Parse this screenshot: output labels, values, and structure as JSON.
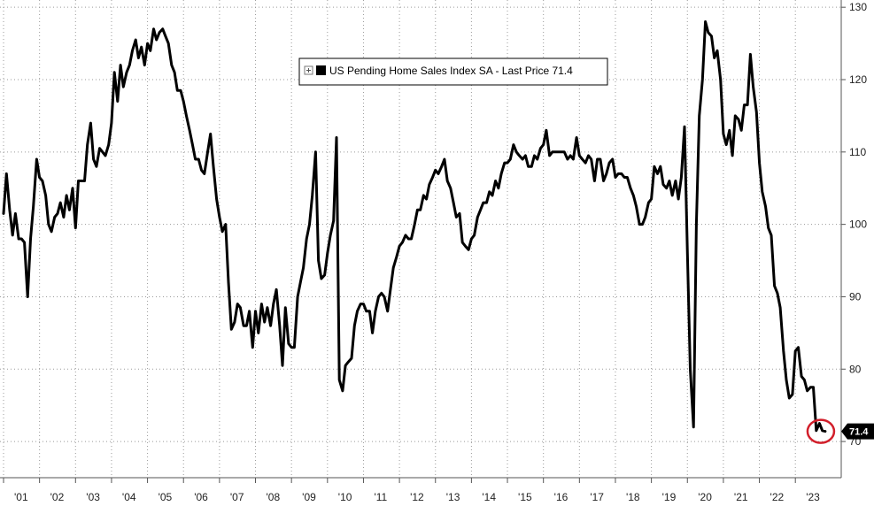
{
  "chart_data": {
    "type": "line",
    "title": "",
    "xlabel": "",
    "ylabel": "",
    "legend": {
      "placement": "top-center",
      "text": "US Pending Home Sales Index SA - Last Price 71.4",
      "box_icon": "expand-icon",
      "swatch_color": "#000000"
    },
    "ylim": [
      65,
      131
    ],
    "y_ticks": [
      "70",
      "80",
      "90",
      "100",
      "110",
      "120",
      "130"
    ],
    "y_tick_values": [
      70,
      80,
      90,
      100,
      110,
      120,
      130
    ],
    "xlim": [
      2001.0,
      2023.93
    ],
    "x_ticks": [
      "'01",
      "'02",
      "'03",
      "'04",
      "'05",
      "'06",
      "'07",
      "'08",
      "'09",
      "'10",
      "'11",
      "'12",
      "'13",
      "'14",
      "'15",
      "'16",
      "'17",
      "'18",
      "'19",
      "'20",
      "'21",
      "'22",
      "'23"
    ],
    "x_tick_values": [
      2001,
      2002,
      2003,
      2004,
      2005,
      2006,
      2007,
      2008,
      2009,
      2010,
      2011,
      2012,
      2013,
      2014,
      2015,
      2016,
      2017,
      2018,
      2019,
      2020,
      2021,
      2022,
      2023
    ],
    "grid": true,
    "last_value_label": "71.4",
    "last_value": 71.4,
    "highlight_circle_color": "#d21f2b",
    "series": [
      {
        "name": "US Pending Home Sales Index SA",
        "color": "#000000",
        "points": [
          [
            2001.0,
            101.5
          ],
          [
            2001.08,
            107.0
          ],
          [
            2001.17,
            102.0
          ],
          [
            2001.25,
            98.5
          ],
          [
            2001.33,
            101.5
          ],
          [
            2001.42,
            98.0
          ],
          [
            2001.5,
            98.0
          ],
          [
            2001.58,
            97.5
          ],
          [
            2001.67,
            90.0
          ],
          [
            2001.75,
            98.0
          ],
          [
            2001.83,
            102.5
          ],
          [
            2001.92,
            109.0
          ],
          [
            2002.0,
            106.5
          ],
          [
            2002.08,
            106.0
          ],
          [
            2002.17,
            104.0
          ],
          [
            2002.25,
            100.0
          ],
          [
            2002.33,
            99.0
          ],
          [
            2002.42,
            101.0
          ],
          [
            2002.5,
            101.5
          ],
          [
            2002.58,
            103.0
          ],
          [
            2002.67,
            101.0
          ],
          [
            2002.75,
            104.0
          ],
          [
            2002.83,
            102.0
          ],
          [
            2002.92,
            105.0
          ],
          [
            2003.0,
            99.5
          ],
          [
            2003.08,
            106.0
          ],
          [
            2003.17,
            106.0
          ],
          [
            2003.25,
            106.0
          ],
          [
            2003.33,
            111.0
          ],
          [
            2003.42,
            114.0
          ],
          [
            2003.5,
            109.0
          ],
          [
            2003.58,
            108.0
          ],
          [
            2003.67,
            110.5
          ],
          [
            2003.75,
            110.0
          ],
          [
            2003.83,
            109.5
          ],
          [
            2003.92,
            111.0
          ],
          [
            2004.0,
            114.0
          ],
          [
            2004.08,
            121.0
          ],
          [
            2004.17,
            117.0
          ],
          [
            2004.25,
            122.0
          ],
          [
            2004.33,
            119.0
          ],
          [
            2004.42,
            121.0
          ],
          [
            2004.5,
            122.0
          ],
          [
            2004.58,
            124.0
          ],
          [
            2004.67,
            125.5
          ],
          [
            2004.75,
            123.0
          ],
          [
            2004.83,
            124.5
          ],
          [
            2004.92,
            122.0
          ],
          [
            2005.0,
            125.0
          ],
          [
            2005.08,
            124.0
          ],
          [
            2005.17,
            127.0
          ],
          [
            2005.25,
            125.5
          ],
          [
            2005.33,
            126.5
          ],
          [
            2005.42,
            127.0
          ],
          [
            2005.5,
            126.0
          ],
          [
            2005.58,
            125.0
          ],
          [
            2005.67,
            122.0
          ],
          [
            2005.75,
            121.0
          ],
          [
            2005.83,
            118.5
          ],
          [
            2005.92,
            118.5
          ],
          [
            2006.0,
            117.0
          ],
          [
            2006.08,
            115.0
          ],
          [
            2006.17,
            113.0
          ],
          [
            2006.25,
            111.0
          ],
          [
            2006.33,
            109.0
          ],
          [
            2006.42,
            109.0
          ],
          [
            2006.5,
            107.5
          ],
          [
            2006.58,
            107.0
          ],
          [
            2006.67,
            110.0
          ],
          [
            2006.75,
            112.5
          ],
          [
            2006.83,
            108.0
          ],
          [
            2006.92,
            103.5
          ],
          [
            2007.0,
            101.0
          ],
          [
            2007.08,
            99.0
          ],
          [
            2007.17,
            100.0
          ],
          [
            2007.25,
            92.0
          ],
          [
            2007.33,
            85.5
          ],
          [
            2007.42,
            86.5
          ],
          [
            2007.5,
            89.0
          ],
          [
            2007.58,
            88.5
          ],
          [
            2007.67,
            86.0
          ],
          [
            2007.75,
            86.0
          ],
          [
            2007.83,
            88.0
          ],
          [
            2007.92,
            83.0
          ],
          [
            2008.0,
            88.0
          ],
          [
            2008.08,
            85.0
          ],
          [
            2008.17,
            89.0
          ],
          [
            2008.25,
            86.5
          ],
          [
            2008.33,
            88.5
          ],
          [
            2008.42,
            86.0
          ],
          [
            2008.5,
            89.0
          ],
          [
            2008.58,
            91.0
          ],
          [
            2008.67,
            86.0
          ],
          [
            2008.75,
            80.5
          ],
          [
            2008.83,
            88.5
          ],
          [
            2008.92,
            83.5
          ],
          [
            2009.0,
            83.0
          ],
          [
            2009.08,
            83.0
          ],
          [
            2009.17,
            90.0
          ],
          [
            2009.25,
            92.0
          ],
          [
            2009.33,
            94.0
          ],
          [
            2009.42,
            98.0
          ],
          [
            2009.5,
            100.0
          ],
          [
            2009.58,
            104.0
          ],
          [
            2009.67,
            110.0
          ],
          [
            2009.75,
            95.0
          ],
          [
            2009.83,
            92.5
          ],
          [
            2009.92,
            93.0
          ],
          [
            2010.0,
            96.0
          ],
          [
            2010.08,
            98.5
          ],
          [
            2010.17,
            100.5
          ],
          [
            2010.25,
            112.0
          ],
          [
            2010.33,
            78.5
          ],
          [
            2010.42,
            77.0
          ],
          [
            2010.5,
            80.5
          ],
          [
            2010.58,
            81.0
          ],
          [
            2010.67,
            81.5
          ],
          [
            2010.75,
            86.0
          ],
          [
            2010.83,
            88.0
          ],
          [
            2010.92,
            89.0
          ],
          [
            2011.0,
            89.0
          ],
          [
            2011.08,
            88.0
          ],
          [
            2011.17,
            88.0
          ],
          [
            2011.25,
            85.0
          ],
          [
            2011.33,
            88.0
          ],
          [
            2011.42,
            90.0
          ],
          [
            2011.5,
            90.5
          ],
          [
            2011.58,
            90.0
          ],
          [
            2011.67,
            88.0
          ],
          [
            2011.75,
            91.0
          ],
          [
            2011.83,
            94.0
          ],
          [
            2011.92,
            95.5
          ],
          [
            2012.0,
            97.0
          ],
          [
            2012.08,
            97.5
          ],
          [
            2012.17,
            98.5
          ],
          [
            2012.25,
            98.0
          ],
          [
            2012.33,
            98.0
          ],
          [
            2012.42,
            100.0
          ],
          [
            2012.5,
            102.0
          ],
          [
            2012.58,
            102.0
          ],
          [
            2012.67,
            104.0
          ],
          [
            2012.75,
            103.5
          ],
          [
            2012.83,
            105.5
          ],
          [
            2012.92,
            106.5
          ],
          [
            2013.0,
            107.5
          ],
          [
            2013.08,
            107.0
          ],
          [
            2013.17,
            108.0
          ],
          [
            2013.25,
            109.0
          ],
          [
            2013.33,
            106.0
          ],
          [
            2013.42,
            105.0
          ],
          [
            2013.5,
            103.0
          ],
          [
            2013.58,
            101.0
          ],
          [
            2013.67,
            101.5
          ],
          [
            2013.75,
            97.5
          ],
          [
            2013.83,
            97.0
          ],
          [
            2013.92,
            96.5
          ],
          [
            2014.0,
            98.0
          ],
          [
            2014.08,
            98.5
          ],
          [
            2014.17,
            101.0
          ],
          [
            2014.25,
            102.0
          ],
          [
            2014.33,
            103.0
          ],
          [
            2014.42,
            103.0
          ],
          [
            2014.5,
            104.5
          ],
          [
            2014.58,
            104.0
          ],
          [
            2014.67,
            106.0
          ],
          [
            2014.75,
            105.0
          ],
          [
            2014.83,
            107.0
          ],
          [
            2014.92,
            108.5
          ],
          [
            2015.0,
            108.5
          ],
          [
            2015.08,
            109.0
          ],
          [
            2015.17,
            111.0
          ],
          [
            2015.25,
            110.0
          ],
          [
            2015.33,
            109.5
          ],
          [
            2015.42,
            109.0
          ],
          [
            2015.5,
            109.5
          ],
          [
            2015.58,
            108.0
          ],
          [
            2015.67,
            108.0
          ],
          [
            2015.75,
            109.5
          ],
          [
            2015.83,
            109.0
          ],
          [
            2015.92,
            110.5
          ],
          [
            2016.0,
            111.0
          ],
          [
            2016.08,
            113.0
          ],
          [
            2016.17,
            109.5
          ],
          [
            2016.25,
            110.0
          ],
          [
            2016.33,
            110.0
          ],
          [
            2016.42,
            110.0
          ],
          [
            2016.5,
            110.0
          ],
          [
            2016.58,
            110.0
          ],
          [
            2016.67,
            109.0
          ],
          [
            2016.75,
            109.5
          ],
          [
            2016.83,
            109.0
          ],
          [
            2016.92,
            112.0
          ],
          [
            2017.0,
            109.5
          ],
          [
            2017.08,
            109.0
          ],
          [
            2017.17,
            108.5
          ],
          [
            2017.25,
            109.5
          ],
          [
            2017.33,
            109.0
          ],
          [
            2017.42,
            106.0
          ],
          [
            2017.5,
            109.0
          ],
          [
            2017.58,
            109.0
          ],
          [
            2017.67,
            106.0
          ],
          [
            2017.75,
            107.0
          ],
          [
            2017.83,
            108.5
          ],
          [
            2017.92,
            109.0
          ],
          [
            2018.0,
            106.5
          ],
          [
            2018.08,
            107.0
          ],
          [
            2018.17,
            107.0
          ],
          [
            2018.25,
            106.5
          ],
          [
            2018.33,
            106.5
          ],
          [
            2018.42,
            105.0
          ],
          [
            2018.5,
            104.0
          ],
          [
            2018.58,
            102.5
          ],
          [
            2018.67,
            100.0
          ],
          [
            2018.75,
            100.0
          ],
          [
            2018.83,
            101.0
          ],
          [
            2018.92,
            103.0
          ],
          [
            2019.0,
            103.5
          ],
          [
            2019.08,
            108.0
          ],
          [
            2019.17,
            107.0
          ],
          [
            2019.25,
            108.0
          ],
          [
            2019.33,
            105.5
          ],
          [
            2019.42,
            105.0
          ],
          [
            2019.5,
            106.0
          ],
          [
            2019.58,
            104.0
          ],
          [
            2019.67,
            106.0
          ],
          [
            2019.75,
            103.5
          ],
          [
            2019.83,
            106.5
          ],
          [
            2019.92,
            113.5
          ],
          [
            2020.0,
            96.0
          ],
          [
            2020.08,
            80.0
          ],
          [
            2020.17,
            72.0
          ],
          [
            2020.25,
            100.0
          ],
          [
            2020.33,
            115.0
          ],
          [
            2020.42,
            120.0
          ],
          [
            2020.5,
            128.0
          ],
          [
            2020.58,
            126.5
          ],
          [
            2020.67,
            126.0
          ],
          [
            2020.75,
            123.0
          ],
          [
            2020.83,
            124.0
          ],
          [
            2020.92,
            120.0
          ],
          [
            2021.0,
            112.5
          ],
          [
            2021.08,
            111.0
          ],
          [
            2021.17,
            113.0
          ],
          [
            2021.25,
            109.5
          ],
          [
            2021.33,
            115.0
          ],
          [
            2021.42,
            114.5
          ],
          [
            2021.5,
            113.0
          ],
          [
            2021.58,
            116.5
          ],
          [
            2021.67,
            116.5
          ],
          [
            2021.75,
            123.5
          ],
          [
            2021.83,
            119.0
          ],
          [
            2021.92,
            115.5
          ],
          [
            2022.0,
            108.5
          ],
          [
            2022.08,
            104.5
          ],
          [
            2022.17,
            102.5
          ],
          [
            2022.25,
            99.5
          ],
          [
            2022.33,
            98.5
          ],
          [
            2022.42,
            91.5
          ],
          [
            2022.5,
            90.5
          ],
          [
            2022.58,
            88.5
          ],
          [
            2022.67,
            82.5
          ],
          [
            2022.75,
            78.5
          ],
          [
            2022.83,
            76.0
          ],
          [
            2022.92,
            76.5
          ],
          [
            2023.0,
            82.5
          ],
          [
            2023.08,
            83.0
          ],
          [
            2023.17,
            79.0
          ],
          [
            2023.25,
            78.5
          ],
          [
            2023.33,
            77.0
          ],
          [
            2023.42,
            77.5
          ],
          [
            2023.5,
            77.5
          ],
          [
            2023.58,
            71.5
          ],
          [
            2023.67,
            72.5
          ],
          [
            2023.75,
            71.5
          ],
          [
            2023.83,
            71.4
          ]
        ]
      }
    ]
  }
}
